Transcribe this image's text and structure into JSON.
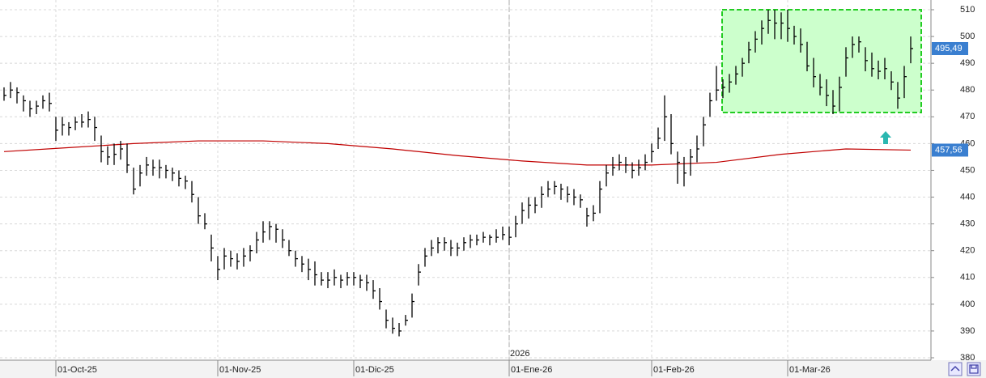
{
  "chart_data": {
    "type": "hlc",
    "categories": [
      null,
      null,
      null,
      null,
      null,
      null,
      null,
      null,
      "01-Oct-25",
      null,
      null,
      null,
      null,
      null,
      null,
      null,
      null,
      null,
      null,
      null,
      null,
      null,
      null,
      null,
      null,
      null,
      null,
      null,
      null,
      null,
      null,
      null,
      null,
      "01-Nov-25",
      null,
      null,
      null,
      null,
      null,
      null,
      null,
      null,
      null,
      null,
      null,
      null,
      null,
      null,
      null,
      null,
      null,
      null,
      null,
      null,
      "01-Dic-25",
      null,
      null,
      null,
      null,
      null,
      null,
      null,
      null,
      null,
      null,
      null,
      null,
      null,
      null,
      null,
      null,
      null,
      null,
      null,
      null,
      null,
      null,
      null,
      "01-Ene-26",
      null,
      null,
      null,
      null,
      null,
      null,
      null,
      null,
      null,
      null,
      null,
      null,
      null,
      null,
      null,
      null,
      null,
      null,
      null,
      null,
      null,
      "01-Feb-26",
      null,
      null,
      null,
      null,
      null,
      null,
      null,
      null,
      null,
      null,
      null,
      null,
      null,
      null,
      null,
      null,
      null,
      null,
      null,
      null,
      "01-Mar-26",
      null,
      null,
      null,
      null,
      null,
      null,
      null,
      null,
      null,
      null,
      null,
      null,
      null,
      null,
      null,
      null,
      null,
      null,
      null
    ],
    "close": [
      478,
      480,
      479,
      476,
      473,
      474,
      476,
      475,
      465,
      467,
      466,
      468,
      468,
      469,
      466,
      457,
      455,
      456,
      458,
      452,
      443,
      449,
      452,
      451,
      451,
      450,
      449,
      447,
      446,
      441,
      433,
      430,
      421,
      413,
      418,
      417,
      416,
      418,
      420,
      424,
      427,
      429,
      428,
      424,
      420,
      417,
      415,
      413,
      411,
      409,
      409,
      410,
      409,
      410,
      410,
      409,
      408,
      405,
      401,
      394,
      391,
      390,
      394,
      401,
      412,
      418,
      421,
      423,
      423,
      421,
      421,
      423,
      424,
      424,
      425,
      425,
      425,
      426,
      425,
      430,
      435,
      437,
      437,
      441,
      443,
      444,
      443,
      441,
      440,
      439,
      433,
      434,
      443,
      449,
      451,
      453,
      452,
      450,
      451,
      453,
      457,
      462,
      470,
      460,
      453,
      449,
      455,
      458,
      467,
      476,
      480,
      481,
      483,
      486,
      490,
      495,
      499,
      503,
      506,
      505,
      505,
      503,
      500,
      497,
      489,
      485,
      481,
      478,
      474,
      481,
      492,
      497,
      498,
      491,
      488,
      487,
      488,
      483,
      477,
      485,
      495.49
    ],
    "low": [
      476,
      477,
      475,
      472,
      470,
      471,
      473,
      472,
      461,
      463,
      463,
      465,
      466,
      466,
      461,
      453,
      452,
      452,
      454,
      449,
      441,
      444,
      448,
      448,
      447,
      447,
      446,
      444,
      443,
      438,
      430,
      428,
      416,
      409,
      413,
      414,
      413,
      414,
      416,
      419,
      423,
      424,
      423,
      421,
      418,
      414,
      412,
      409,
      407,
      407,
      406,
      407,
      406,
      407,
      407,
      406,
      405,
      402,
      398,
      391,
      389,
      388,
      392,
      395,
      407,
      414,
      418,
      419,
      420,
      418,
      418,
      420,
      421,
      422,
      423,
      422,
      423,
      424,
      422,
      425,
      430,
      432,
      434,
      436,
      440,
      441,
      439,
      438,
      437,
      436,
      429,
      431,
      434,
      444,
      448,
      450,
      449,
      447,
      448,
      450,
      453,
      458,
      461,
      456,
      445,
      444,
      448,
      453,
      459,
      470,
      476,
      477,
      479,
      482,
      485,
      490,
      494,
      497,
      501,
      499,
      499,
      498,
      497,
      494,
      487,
      481,
      478,
      474,
      471,
      472,
      485,
      492,
      494,
      487,
      485,
      484,
      484,
      480,
      473,
      477,
      490
    ],
    "high": [
      481,
      483,
      481,
      478,
      476,
      476,
      478,
      479,
      470,
      470,
      468,
      470,
      471,
      472,
      470,
      463,
      459,
      460,
      461,
      460,
      451,
      452,
      455,
      454,
      454,
      452,
      451,
      450,
      448,
      446,
      440,
      434,
      426,
      418,
      421,
      420,
      419,
      421,
      422,
      427,
      431,
      431,
      430,
      428,
      424,
      420,
      418,
      417,
      416,
      412,
      412,
      413,
      411,
      412,
      412,
      411,
      411,
      409,
      406,
      398,
      395,
      393,
      396,
      404,
      415,
      421,
      424,
      425,
      425,
      424,
      423,
      425,
      426,
      426,
      427,
      426,
      428,
      429,
      429,
      433,
      438,
      440,
      440,
      444,
      446,
      446,
      445,
      444,
      443,
      441,
      436,
      437,
      446,
      452,
      455,
      456,
      455,
      453,
      454,
      456,
      460,
      466,
      478,
      471,
      457,
      455,
      458,
      463,
      470,
      479,
      489,
      484,
      486,
      489,
      492,
      498,
      502,
      506,
      510,
      510,
      509,
      510,
      504,
      503,
      498,
      492,
      486,
      484,
      480,
      485,
      496,
      500,
      500,
      496,
      494,
      491,
      492,
      487,
      483,
      489,
      500
    ],
    "color": "#000000",
    "moving_average": {
      "color": "#c00000",
      "x": [
        0,
        10,
        20,
        30,
        40,
        50,
        60,
        70,
        80,
        90,
        100,
        110,
        120,
        130,
        140
      ],
      "values": [
        457,
        458.5,
        460,
        461,
        461,
        460,
        458,
        455.5,
        453.5,
        452,
        452,
        453,
        456,
        458,
        457.56
      ]
    },
    "last_close_label": "495,49",
    "moving_average_label": "457,56",
    "year_label": "2026",
    "ylim": [
      380,
      510
    ],
    "yticks": [
      380,
      390,
      400,
      410,
      420,
      430,
      440,
      450,
      460,
      470,
      480,
      490,
      500,
      510
    ],
    "grid": true
  }
}
